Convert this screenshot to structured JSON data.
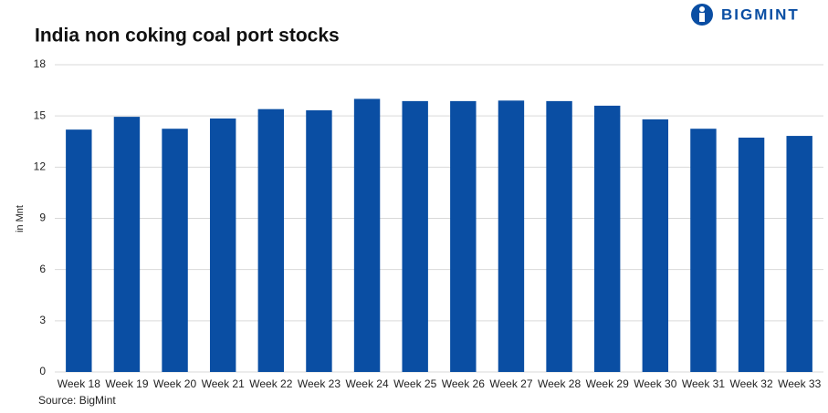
{
  "logo": "BIGMINT",
  "chart_data": {
    "type": "bar",
    "title": "India non coking coal port stocks",
    "y_label": "in Mnt",
    "source": "Source: BigMint",
    "categories": [
      "Week 18",
      "Week 19",
      "Week 20",
      "Week 21",
      "Week 22",
      "Week 23",
      "Week 24",
      "Week 25",
      "Week 26",
      "Week 27",
      "Week 28",
      "Week 29",
      "Week 30",
      "Week 31",
      "Week 32",
      "Week 33"
    ],
    "values": [
      14.2,
      14.95,
      14.25,
      14.85,
      15.4,
      15.33,
      16.0,
      15.87,
      15.87,
      15.9,
      15.87,
      15.6,
      14.8,
      14.25,
      13.73,
      13.83
    ],
    "color": "#0a4ea3",
    "ylim": [
      0,
      18
    ],
    "yticks": [
      0,
      3,
      6,
      9,
      12,
      15,
      18
    ],
    "grid": true
  }
}
